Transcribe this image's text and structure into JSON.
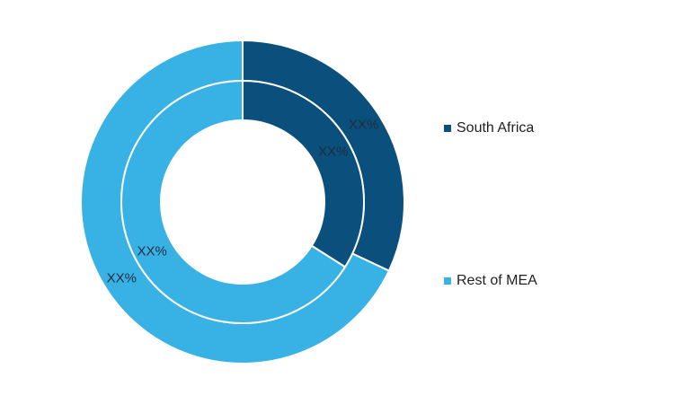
{
  "chart_data": {
    "type": "donut",
    "categories": [
      "South Africa",
      "Rest of MEA"
    ],
    "colors": [
      "#0b4f7c",
      "#38b1e4"
    ],
    "series": [
      {
        "values": [
          32,
          68
        ],
        "value_labels": [
          "XX%",
          "XX%"
        ]
      },
      {
        "values": [
          34,
          66
        ],
        "value_labels": [
          "XX%",
          "XX%"
        ]
      }
    ]
  }
}
